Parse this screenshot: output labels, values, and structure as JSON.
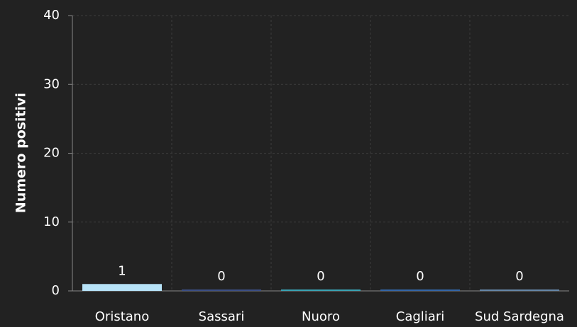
{
  "chart_data": {
    "type": "bar",
    "y_label": "Numero positivi",
    "categories": [
      "Oristano",
      "Sassari",
      "Nuoro",
      "Cagliari",
      "Sud Sardegna"
    ],
    "values": [
      1,
      0,
      0,
      0,
      0
    ],
    "colors": [
      "#b7e3f8",
      "#3c4f86",
      "#3aa3b4",
      "#3466a8",
      "#6687a8"
    ],
    "ylim": [
      0,
      40
    ],
    "yticks": [
      0,
      10,
      20,
      30,
      40
    ],
    "grid": true
  }
}
